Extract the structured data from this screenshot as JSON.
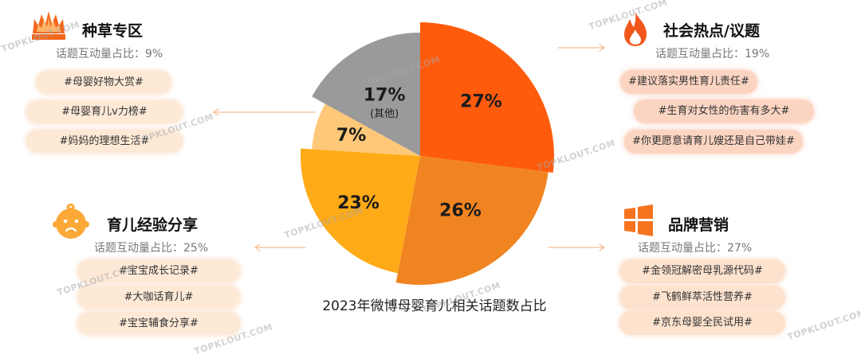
{
  "watermark": "TOPKLOUT.COM",
  "colors": {
    "accent": "#F4671C",
    "tag_fill": "#FDE9D6",
    "tag_fill_salmon": "#FCD5C2",
    "connector": "#F6BD95",
    "title_text": "#111111",
    "subtitle_text": "#777777"
  },
  "panels": [
    {
      "icon": "fire-crown-icon",
      "title": "种草专区",
      "subtitle": "话题互动量占比：9%",
      "tags": [
        "#母婴好物大赏#",
        "#母婴育儿v力榜#",
        "#妈妈的理想生活#"
      ]
    },
    {
      "icon": "flame-icon",
      "title": "社会热点/议题",
      "subtitle": "话题互动量占比：19%",
      "tags": [
        "#建议落实男性育儿责任#",
        "#生育对女性的伤害有多大#",
        "#你更愿意请育儿嫂还是自己带娃#"
      ]
    },
    {
      "icon": "baby-face-icon",
      "title": "育儿经验分享",
      "subtitle": "话题互动量占比：25%",
      "tags": [
        "#宝宝成长记录#",
        "#大咖话育儿#",
        "#宝宝辅食分享#"
      ]
    },
    {
      "icon": "windows-grid-icon",
      "title": "品牌营销",
      "subtitle": "话题互动量占比：27%",
      "tags": [
        "#金领冠解密母乳源代码#",
        "#飞鹤鲜萃活性营养#",
        "#京东母婴全民试用#"
      ]
    }
  ],
  "chart_data": {
    "type": "pie",
    "title": "2023年微博母婴育儿相关话题数占比",
    "values": [
      27,
      26,
      23,
      7,
      17
    ],
    "labels": [
      "27%",
      "26%",
      "23%",
      "7%",
      "17%"
    ],
    "sublabels": [
      "",
      "",
      "",
      "",
      "(其他)"
    ],
    "colors": [
      "#FF5B0C",
      "#F08421",
      "#FFAA17",
      "#FFC878",
      "#9A9A9A"
    ],
    "legend": "none"
  }
}
